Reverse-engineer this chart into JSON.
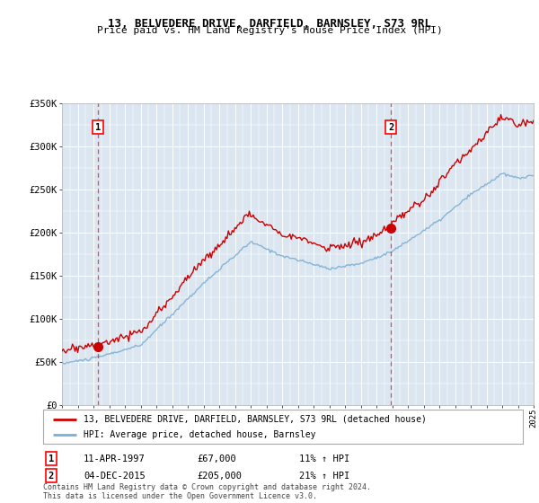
{
  "title": "13, BELVEDERE DRIVE, DARFIELD, BARNSLEY, S73 9RL",
  "subtitle": "Price paid vs. HM Land Registry's House Price Index (HPI)",
  "sale1_date": 1997.28,
  "sale1_price": 67000,
  "sale1_label": "1",
  "sale1_text": "11-APR-1997",
  "sale1_amount": "£67,000",
  "sale1_hpi": "11% ↑ HPI",
  "sale2_date": 2015.92,
  "sale2_price": 205000,
  "sale2_label": "2",
  "sale2_text": "04-DEC-2015",
  "sale2_amount": "£205,000",
  "sale2_hpi": "21% ↑ HPI",
  "property_color": "#cc0000",
  "hpi_color": "#7bafd4",
  "background_color": "#dce6f1",
  "plot_bg_color": "#dce6f1",
  "legend_label_property": "13, BELVEDERE DRIVE, DARFIELD, BARNSLEY, S73 9RL (detached house)",
  "legend_label_hpi": "HPI: Average price, detached house, Barnsley",
  "footer": "Contains HM Land Registry data © Crown copyright and database right 2024.\nThis data is licensed under the Open Government Licence v3.0.",
  "xmin": 1995,
  "xmax": 2025,
  "ymin": 0,
  "ymax": 350000
}
